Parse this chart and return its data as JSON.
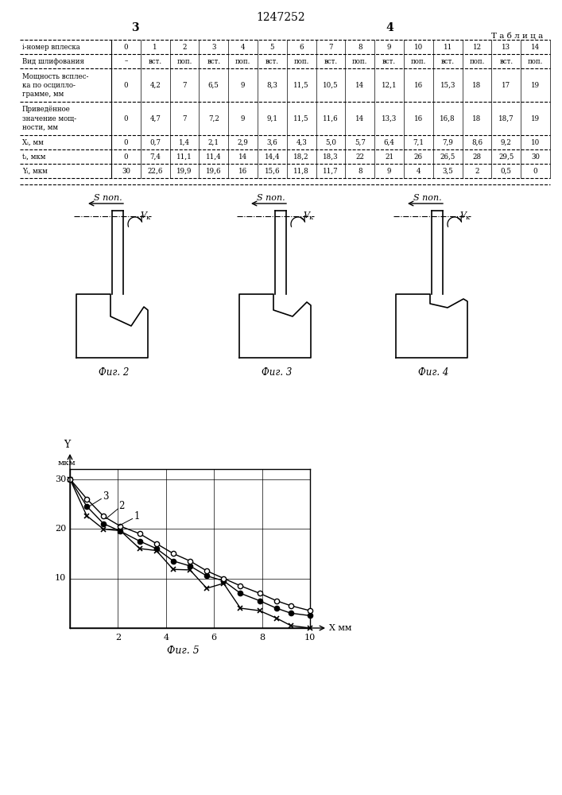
{
  "title": "1247252",
  "page_left": "3",
  "page_right": "4",
  "table_label": "Т а б л и ц а",
  "row0_label": "i-номер вплеска",
  "row0_vals": [
    "0",
    "1",
    "2",
    "3",
    "4",
    "5",
    "6",
    "7",
    "8",
    "9",
    "10",
    "11",
    "12",
    "13",
    "14"
  ],
  "row1_label": "Вид шлифования",
  "row1_vals": [
    "–",
    "вст.",
    "поп.",
    "вст.",
    "поп.",
    "вст.",
    "поп.",
    "вст.",
    "поп.",
    "вст.",
    "поп.",
    "вст.",
    "поп.",
    "вст.",
    "поп."
  ],
  "row2_label": "Мощность всплес-\nка по осцилло-\nграмме, мм",
  "row2_vals": [
    "0",
    "4,2",
    "7",
    "6,5",
    "9",
    "8,3",
    "11,5",
    "10,5",
    "14",
    "12,1",
    "16",
    "15,3",
    "18",
    "17",
    "19"
  ],
  "row3_label": "Приведённое\nзначение мощ-\nности, мм",
  "row3_vals": [
    "0",
    "4,7",
    "7",
    "7,2",
    "9",
    "9,1",
    "11,5",
    "11,6",
    "14",
    "13,3",
    "16",
    "16,8",
    "18",
    "18,7",
    "19"
  ],
  "row4_label": "Xᵢ, мм",
  "row4_vals": [
    "0",
    "0,7",
    "1,4",
    "2,1",
    "2,9",
    "3,6",
    "4,3",
    "5,0",
    "5,7",
    "6,4",
    "7,1",
    "7,9",
    "8,6",
    "9,2",
    "10"
  ],
  "row5_label": "tᵢ, мкм",
  "row5_vals": [
    "0",
    "7,4",
    "11,1",
    "11,4",
    "14",
    "14,4",
    "18,2",
    "18,3",
    "22",
    "21",
    "26",
    "26,5",
    "28",
    "29,5",
    "30"
  ],
  "row6_label": "Yᵢ, мкм",
  "row6_vals": [
    "30",
    "22,6",
    "19,9",
    "19,6",
    "16",
    "15,6",
    "11,8",
    "11,7",
    "8",
    "9",
    "4",
    "3,5",
    "2",
    "0,5",
    "0"
  ],
  "fig2_label": "Фиг. 2",
  "fig3_label": "Фиг. 3",
  "fig4_label": "Фиг. 4",
  "fig5_label": "Фиг. 5",
  "graph_xlim": [
    0,
    10
  ],
  "graph_ylim": [
    0,
    32
  ],
  "graph_xticks": [
    2,
    4,
    6,
    8,
    10
  ],
  "graph_yticks": [
    10,
    20,
    30
  ],
  "curve1_x": [
    0,
    0.7,
    1.4,
    2.1,
    2.9,
    3.6,
    4.3,
    5.0,
    5.7,
    6.4,
    7.1,
    7.9,
    8.6,
    9.2,
    10.0
  ],
  "curve1_y": [
    30,
    22.6,
    19.9,
    19.6,
    16,
    15.6,
    11.8,
    11.7,
    8,
    9,
    4,
    3.5,
    2,
    0.5,
    0
  ],
  "curve2_x": [
    0,
    0.7,
    1.4,
    2.1,
    2.9,
    3.6,
    4.3,
    5.0,
    5.7,
    6.4,
    7.1,
    7.9,
    8.6,
    9.2,
    10.0
  ],
  "curve2_y": [
    30,
    24.5,
    21.0,
    19.5,
    17.5,
    16.0,
    13.5,
    12.5,
    10.5,
    9.5,
    7.0,
    5.5,
    4.0,
    3.0,
    2.5
  ],
  "curve3_x": [
    0,
    0.7,
    1.4,
    2.1,
    2.9,
    3.6,
    4.3,
    5.0,
    5.7,
    6.4,
    7.1,
    7.9,
    8.6,
    9.2,
    10.0
  ],
  "curve3_y": [
    30,
    26.0,
    22.5,
    20.5,
    19.0,
    17.0,
    15.0,
    13.5,
    11.5,
    10.0,
    8.5,
    7.0,
    5.5,
    4.5,
    3.5
  ],
  "bg_color": "#ffffff"
}
